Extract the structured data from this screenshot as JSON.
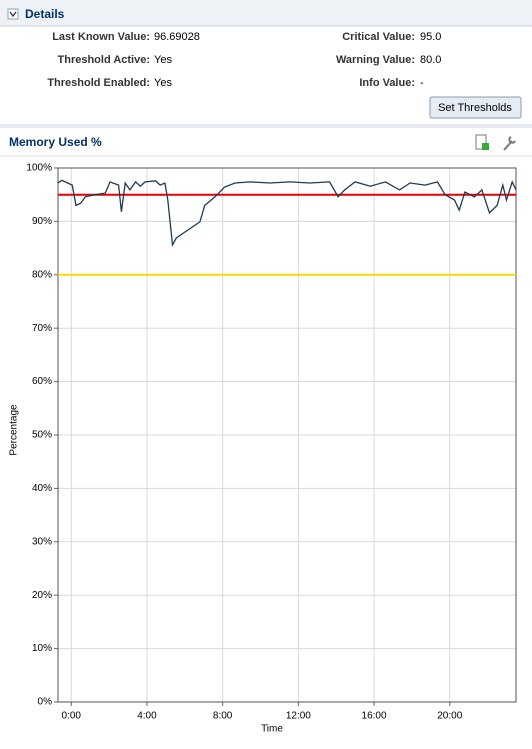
{
  "details": {
    "section_title": "Details",
    "fields": [
      {
        "label": "Last Known Value:",
        "value": "96.69028"
      },
      {
        "label": "Threshold Active:",
        "value": "Yes"
      },
      {
        "label": "Threshold Enabled:",
        "value": "Yes"
      },
      {
        "label": "Critical Value:",
        "value": "95.0"
      },
      {
        "label": "Warning Value:",
        "value": "80.0"
      },
      {
        "label": "Info Value:",
        "value": "-"
      }
    ],
    "button": "Set Thresholds"
  },
  "chart_data": {
    "type": "line",
    "title": "Memory Used %",
    "x_label": "Time",
    "y_label": "Percentage",
    "x": [
      -0.7,
      -0.5,
      0.05,
      0.25,
      0.5,
      0.75,
      1.25,
      1.8,
      2.05,
      2.5,
      2.65,
      2.85,
      3.1,
      3.4,
      3.65,
      3.9,
      4.45,
      4.7,
      4.95,
      5.1,
      5.35,
      5.55,
      6.0,
      6.8,
      7.05,
      7.6,
      8.1,
      8.65,
      9.45,
      10.5,
      11.55,
      12.6,
      13.65,
      14.1,
      14.45,
      15.0,
      15.8,
      16.6,
      17.35,
      17.9,
      18.7,
      19.35,
      19.75,
      20.25,
      20.5,
      20.8,
      21.3,
      21.7,
      22.1,
      22.5,
      22.8,
      23.0,
      23.3,
      23.5
    ],
    "series": [
      {
        "color": "#1f3a56",
        "values": [
          97.2,
          97.7,
          96.8,
          93,
          93.4,
          94.6,
          95,
          95.3,
          97.4,
          96.8,
          91.8,
          97.2,
          95.9,
          97.4,
          96.6,
          97.4,
          97.6,
          96.8,
          97.2,
          94,
          85.6,
          86.9,
          88,
          89.9,
          93,
          94.6,
          96.4,
          97.2,
          97.4,
          97.2,
          97.4,
          97.2,
          97.4,
          94.6,
          95.9,
          97.4,
          96.6,
          97.4,
          95.9,
          97.2,
          96.8,
          97.4,
          95,
          94,
          92.1,
          95.5,
          94.6,
          95.9,
          91.6,
          93,
          96.8,
          94,
          97.4,
          95.9
        ]
      }
    ],
    "reference_lines": [
      {
        "value": 95,
        "color": "#e60000"
      },
      {
        "value": 80,
        "color": "#ffd700"
      }
    ],
    "xlim": [
      -0.7,
      23.5
    ],
    "xticks": [
      {
        "value": 0,
        "label": "0:00"
      },
      {
        "value": 4,
        "label": "4:00"
      },
      {
        "value": 8,
        "label": "8:00"
      },
      {
        "value": 12,
        "label": "12:00"
      },
      {
        "value": 16,
        "label": "16:00"
      },
      {
        "value": 20,
        "label": "20:00"
      }
    ],
    "ylim": [
      0,
      100
    ],
    "yticks": [
      {
        "value": 0,
        "label": "0%"
      },
      {
        "value": 10,
        "label": "10%"
      },
      {
        "value": 20,
        "label": "20%"
      },
      {
        "value": 30,
        "label": "30%"
      },
      {
        "value": 40,
        "label": "40%"
      },
      {
        "value": 50,
        "label": "50%"
      },
      {
        "value": 60,
        "label": "60%"
      },
      {
        "value": 70,
        "label": "70%"
      },
      {
        "value": 80,
        "label": "80%"
      },
      {
        "value": 90,
        "label": "90%"
      },
      {
        "value": 100,
        "label": "100%"
      }
    ],
    "grid": true
  }
}
